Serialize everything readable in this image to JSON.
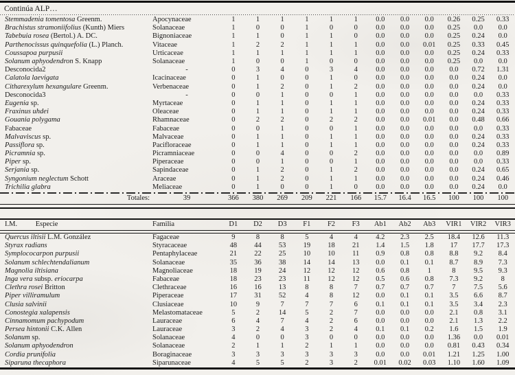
{
  "table1": {
    "continuation_label": "Continúa ALP…",
    "rows": [
      {
        "parts": [
          [
            "Stemmadenia tomentosa",
            1
          ],
          [
            " Greenm.",
            0
          ]
        ],
        "familia": "Apocynaceae",
        "v": [
          "1",
          "1",
          "1",
          "1",
          "1",
          "1",
          "0.0",
          "0.0",
          "0.0",
          "0.26",
          "0.25",
          "0.33"
        ]
      },
      {
        "parts": [
          [
            "Brachistus stramoniifolius",
            1
          ],
          [
            " (Kunth) Miers",
            0
          ]
        ],
        "familia": "Solanaceae",
        "v": [
          "1",
          "0",
          "0",
          "1",
          "0",
          "0",
          "0.0",
          "0.0",
          "0.0",
          "0.25",
          "0.0",
          "0.0"
        ]
      },
      {
        "parts": [
          [
            "Tabebuia rosea",
            1
          ],
          [
            " (Bertol.)  A. DC.",
            0
          ]
        ],
        "familia": "Bignoniaceae",
        "v": [
          "1",
          "1",
          "0",
          "1",
          "1",
          "0",
          "0.0",
          "0.0",
          "0.0",
          "0.25",
          "0.24",
          "0.0"
        ]
      },
      {
        "parts": [
          [
            "Parthenocissus quinquefolia",
            1
          ],
          [
            " (L.) Planch.",
            0
          ]
        ],
        "familia": "Vitaceae",
        "v": [
          "1",
          "2",
          "2",
          "1",
          "1",
          "1",
          "0.0",
          "0.0",
          "0.01",
          "0.25",
          "0.33",
          "0.45"
        ]
      },
      {
        "parts": [
          [
            "Coussapoa purpusii",
            1
          ]
        ],
        "familia": "Urticaceae",
        "v": [
          "1",
          "1",
          "1",
          "1",
          "1",
          "1",
          "0.0",
          "0.0",
          "0.0",
          "0.25",
          "0.24",
          "0.33"
        ]
      },
      {
        "parts": [
          [
            "Solanum aphyodendron",
            1
          ],
          [
            " S. Knapp",
            0
          ]
        ],
        "familia": "Solanaceae",
        "v": [
          "1",
          "0",
          "0",
          "1",
          "0",
          "0",
          "0.0",
          "0.0",
          "0.0",
          "0.25",
          "0.0",
          "0.0"
        ]
      },
      {
        "parts": [
          [
            "Desconocida2",
            0
          ]
        ],
        "familia": "-",
        "v": [
          "0",
          "3",
          "4",
          "0",
          "3",
          "4",
          "0.0",
          "0.0",
          "0.0",
          "0.0",
          "0.72",
          "1.31"
        ]
      },
      {
        "parts": [
          [
            "Calatola laevigata",
            1
          ]
        ],
        "familia": "Icacinaceae",
        "v": [
          "0",
          "1",
          "0",
          "0",
          "1",
          "0",
          "0.0",
          "0.0",
          "0.0",
          "0.0",
          "0.24",
          "0.0"
        ]
      },
      {
        "parts": [
          [
            "Citharexylum hexangulare",
            1
          ],
          [
            " Greenm.",
            0
          ]
        ],
        "familia": "Verbenaceae",
        "v": [
          "0",
          "1",
          "2",
          "0",
          "1",
          "2",
          "0.0",
          "0.0",
          "0.0",
          "0.0",
          "0.24",
          "0.0"
        ]
      },
      {
        "parts": [
          [
            "Desconocida3",
            0
          ]
        ],
        "familia": "-",
        "v": [
          "0",
          "0",
          "1",
          "0",
          "0",
          "1",
          "0.0",
          "0.0",
          "0.0",
          "0.0",
          "0.0",
          "0.33"
        ]
      },
      {
        "parts": [
          [
            "Eugenia",
            1
          ],
          [
            " sp.",
            0
          ]
        ],
        "familia": "Myrtaceae",
        "v": [
          "0",
          "1",
          "1",
          "0",
          "1",
          "1",
          "0.0",
          "0.0",
          "0.0",
          "0.0",
          "0.24",
          "0.33"
        ]
      },
      {
        "parts": [
          [
            "Fraxinus uhdei",
            1
          ]
        ],
        "familia": "Oleaceae",
        "v": [
          "0",
          "1",
          "1",
          "0",
          "1",
          "1",
          "0.0",
          "0.0",
          "0.0",
          "0.0",
          "0.24",
          "0.33"
        ]
      },
      {
        "parts": [
          [
            "Gouania polygama",
            1
          ]
        ],
        "familia": "Rhamnaceae",
        "v": [
          "0",
          "2",
          "2",
          "0",
          "2",
          "2",
          "0.0",
          "0.0",
          "0.01",
          "0.0",
          "0.48",
          "0.66"
        ]
      },
      {
        "parts": [
          [
            "Fabaceae",
            0
          ]
        ],
        "familia": "Fabaceae",
        "v": [
          "0",
          "0",
          "1",
          "0",
          "0",
          "1",
          "0.0",
          "0.0",
          "0.0",
          "0.0",
          "0.0",
          "0.33"
        ]
      },
      {
        "parts": [
          [
            "Malvaviscus",
            1
          ],
          [
            " sp.",
            0
          ]
        ],
        "familia": "Malvaceae",
        "v": [
          "0",
          "1",
          "1",
          "0",
          "1",
          "1",
          "0.0",
          "0.0",
          "0.0",
          "0.0",
          "0.24",
          "0.33"
        ]
      },
      {
        "parts": [
          [
            "Passiflora",
            1
          ],
          [
            " sp.",
            0
          ]
        ],
        "familia": "Pacifloraceae",
        "v": [
          "0",
          "1",
          "1",
          "0",
          "1",
          "1",
          "0.0",
          "0.0",
          "0.0",
          "0.0",
          "0.24",
          "0.33"
        ]
      },
      {
        "parts": [
          [
            "Picramnia",
            1
          ],
          [
            " sp.",
            0
          ]
        ],
        "familia": "Picramniaceae",
        "v": [
          "0",
          "0",
          "4",
          "0",
          "0",
          "2",
          "0.0",
          "0.0",
          "0.0",
          "0.0",
          "0.0",
          "0.89"
        ]
      },
      {
        "parts": [
          [
            "Piper",
            1
          ],
          [
            " sp.",
            0
          ]
        ],
        "familia": "Piperaceae",
        "v": [
          "0",
          "0",
          "1",
          "0",
          "0",
          "1",
          "0.0",
          "0.0",
          "0.0",
          "0.0",
          "0.0",
          "0.33"
        ]
      },
      {
        "parts": [
          [
            "Serjania",
            1
          ],
          [
            " sp.",
            0
          ]
        ],
        "familia": "Sapindaceae",
        "v": [
          "0",
          "1",
          "2",
          "0",
          "1",
          "2",
          "0.0",
          "0.0",
          "0.0",
          "0.0",
          "0.24",
          "0.65"
        ]
      },
      {
        "parts": [
          [
            "Syngonium neglectum",
            1
          ],
          [
            " Schott",
            0
          ]
        ],
        "familia": "Araceae",
        "v": [
          "0",
          "1",
          "2",
          "0",
          "1",
          "1",
          "0.0",
          "0.0",
          "0.0",
          "0.0",
          "0.24",
          "0.46"
        ]
      },
      {
        "parts": [
          [
            "Trichilia glabra",
            1
          ]
        ],
        "familia": "Meliaceae",
        "v": [
          "0",
          "1",
          "0",
          "0",
          "1",
          "0",
          "0.0",
          "0.0",
          "0.0",
          "0.0",
          "0.24",
          "0.0"
        ]
      }
    ],
    "totals": {
      "label": "Totales:",
      "count": "39",
      "values": [
        "366",
        "380",
        "269",
        "209",
        "221",
        "166",
        "15.7",
        "16.4",
        "16.5",
        "100",
        "100",
        "100"
      ]
    }
  },
  "table2": {
    "headers": {
      "im": "I.M.",
      "especie": "Especie",
      "familia": "Familia",
      "cols": [
        "D1",
        "D2",
        "D3",
        "F1",
        "F2",
        "F3",
        "Ab1",
        "Ab2",
        "Ab3",
        "VIR1",
        "VIR2",
        "VIR3"
      ]
    },
    "rows": [
      {
        "parts": [
          [
            "Quercus iltisii",
            1
          ],
          [
            " L.M. González",
            0
          ]
        ],
        "familia": "Fagaceae",
        "v": [
          "9",
          "8",
          "8",
          "5",
          "4",
          "4",
          "4.2",
          "2.3",
          "2.5",
          "18.4",
          "12.6",
          "11.3"
        ]
      },
      {
        "parts": [
          [
            "Styrax radians",
            1
          ]
        ],
        "familia": "Styracaceae",
        "v": [
          "48",
          "44",
          "53",
          "19",
          "18",
          "21",
          "1.4",
          "1.5",
          "1.8",
          "17",
          "17.7",
          "17.3"
        ]
      },
      {
        "parts": [
          [
            "Symplococarpon purpusii",
            1
          ]
        ],
        "familia": "Pentaphylaceae",
        "v": [
          "21",
          "22",
          "25",
          "10",
          "10",
          "11",
          "0.9",
          "0.8",
          "0.8",
          "8.8",
          "9.2",
          "8.4"
        ]
      },
      {
        "parts": [
          [
            "Solanum schlechtendalianum",
            1
          ]
        ],
        "familia": "Solanaceae",
        "v": [
          "35",
          "36",
          "38",
          "14",
          "14",
          "13",
          "0.0",
          "0.1",
          "0.1",
          "8.7",
          "8.9",
          "7.3"
        ]
      },
      {
        "parts": [
          [
            "Magnolia iltisiana",
            1
          ]
        ],
        "familia": "Magnoliaceae",
        "v": [
          "18",
          "19",
          "24",
          "12",
          "12",
          "12",
          "0.6",
          "0.8",
          "1",
          "8",
          "9.5",
          "9.3"
        ]
      },
      {
        "parts": [
          [
            "Inga vera",
            1
          ],
          [
            "  subsp. ",
            0
          ],
          [
            "eriocarpa",
            1
          ]
        ],
        "familia": "Fabaceae",
        "v": [
          "18",
          "23",
          "23",
          "11",
          "12",
          "12",
          "0.5",
          "0.6",
          "0.8",
          "7.3",
          "9.2",
          "8"
        ]
      },
      {
        "parts": [
          [
            "Clethra rosei",
            1
          ],
          [
            " Britton",
            0
          ]
        ],
        "familia": "Clethraceae",
        "v": [
          "16",
          "16",
          "13",
          "8",
          "8",
          "7",
          "0.7",
          "0.7",
          "0.7",
          "7",
          "7.5",
          "5.6"
        ]
      },
      {
        "parts": [
          [
            "Piper villiramulum",
            1
          ]
        ],
        "familia": "Piperaceae",
        "v": [
          "17",
          "31",
          "52",
          "4",
          "8",
          "12",
          "0.0",
          "0.1",
          "0.1",
          "3.5",
          "6.6",
          "8.7"
        ]
      },
      {
        "parts": [
          [
            "Clusia salvinii",
            1
          ]
        ],
        "familia": "Clusiaceae",
        "v": [
          "10",
          "9",
          "7",
          "7",
          "7",
          "6",
          "0.1",
          "0.1",
          "0.1",
          "3.5",
          "3.4",
          "2.3"
        ]
      },
      {
        "parts": [
          [
            "Conostegia xalapensis",
            1
          ]
        ],
        "familia": "Melastomataceae",
        "v": [
          "5",
          "2",
          "14",
          "5",
          "2",
          "7",
          "0.0",
          "0.0",
          "0.0",
          "2.1",
          "0.8",
          "3.1"
        ]
      },
      {
        "parts": [
          [
            "Cinnamomum pachypodum",
            1
          ]
        ],
        "familia": "Lauraceae",
        "v": [
          "6",
          "4",
          "7",
          "4",
          "2",
          "6",
          "0.0",
          "0.0",
          "0.0",
          "2.1",
          "1.3",
          "2.2"
        ]
      },
      {
        "parts": [
          [
            "Persea hintonii",
            1
          ],
          [
            " C.K. Allen",
            0
          ]
        ],
        "familia": "Lauraceae",
        "v": [
          "3",
          "2",
          "4",
          "3",
          "2",
          "4",
          "0.1",
          "0.1",
          "0.2",
          "1.6",
          "1.5",
          "1.9"
        ]
      },
      {
        "parts": [
          [
            "Solanum",
            1
          ],
          [
            " sp.",
            0
          ]
        ],
        "familia": "Solanaceae",
        "v": [
          "4",
          "0",
          "0",
          "3",
          "0",
          "0",
          "0.0",
          "0.0",
          "0.0",
          "1.36",
          "0.0",
          "0.01"
        ]
      },
      {
        "parts": [
          [
            "Solanum aphyodendron",
            1
          ]
        ],
        "familia": "Solanaceae",
        "v": [
          "2",
          "1",
          "1",
          "2",
          "1",
          "1",
          "0.0",
          "0.0",
          "0.0",
          "0.81",
          "0.43",
          "0.34"
        ]
      },
      {
        "parts": [
          [
            "Cordia prunifolia",
            1
          ]
        ],
        "familia": "Boraginaceae",
        "v": [
          "3",
          "3",
          "3",
          "3",
          "3",
          "3",
          "0.0",
          "0.0",
          "0.01",
          "1.21",
          "1.25",
          "1.00"
        ]
      },
      {
        "parts": [
          [
            "Siparuna thecaphora",
            1
          ]
        ],
        "familia": "Siparunaceae",
        "v": [
          "4",
          "5",
          "5",
          "2",
          "3",
          "2",
          "0.01",
          "0.02",
          "0.03",
          "1.10",
          "1.60",
          "1.09"
        ]
      }
    ]
  }
}
